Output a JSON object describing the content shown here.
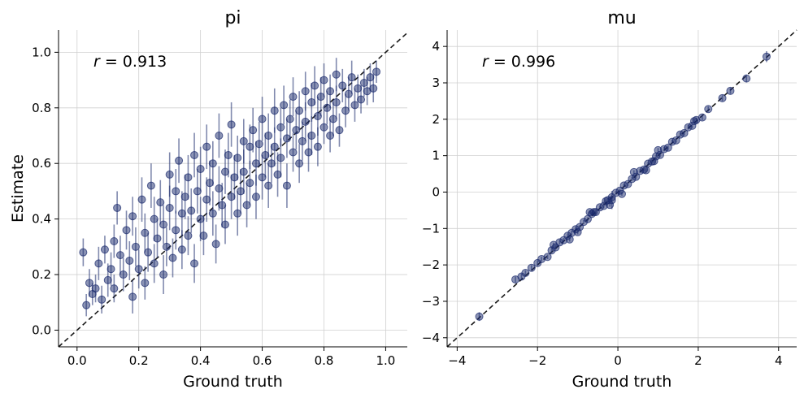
{
  "chart_data": [
    {
      "type": "scatter",
      "title": "pi",
      "xlabel": "Ground truth",
      "ylabel": "Estimate",
      "xlim": [
        -0.06,
        1.07
      ],
      "ylim": [
        -0.06,
        1.08
      ],
      "xticks": [
        "0.0",
        "0.2",
        "0.4",
        "0.6",
        "0.8",
        "1.0"
      ],
      "yticks": [
        "0.0",
        "0.2",
        "0.4",
        "0.6",
        "0.8",
        "1.0"
      ],
      "annotation": {
        "var": "r",
        "text": " = 0.913"
      },
      "identity_line": true,
      "grid": true,
      "color": "#1a2a6c",
      "line_color": "#1a1a1a",
      "points": [
        [
          0.02,
          0.28,
          0.05
        ],
        [
          0.03,
          0.09,
          0.04
        ],
        [
          0.04,
          0.17,
          0.05
        ],
        [
          0.05,
          0.13,
          0.04
        ],
        [
          0.06,
          0.15,
          0.05
        ],
        [
          0.07,
          0.24,
          0.06
        ],
        [
          0.08,
          0.11,
          0.05
        ],
        [
          0.09,
          0.29,
          0.05
        ],
        [
          0.1,
          0.18,
          0.06
        ],
        [
          0.11,
          0.22,
          0.06
        ],
        [
          0.12,
          0.32,
          0.06
        ],
        [
          0.12,
          0.15,
          0.05
        ],
        [
          0.13,
          0.44,
          0.06
        ],
        [
          0.14,
          0.27,
          0.07
        ],
        [
          0.15,
          0.2,
          0.06
        ],
        [
          0.16,
          0.36,
          0.07
        ],
        [
          0.17,
          0.25,
          0.07
        ],
        [
          0.18,
          0.12,
          0.06
        ],
        [
          0.18,
          0.41,
          0.07
        ],
        [
          0.19,
          0.3,
          0.07
        ],
        [
          0.2,
          0.22,
          0.07
        ],
        [
          0.21,
          0.47,
          0.08
        ],
        [
          0.22,
          0.35,
          0.07
        ],
        [
          0.22,
          0.17,
          0.06
        ],
        [
          0.23,
          0.28,
          0.07
        ],
        [
          0.24,
          0.52,
          0.08
        ],
        [
          0.25,
          0.4,
          0.08
        ],
        [
          0.25,
          0.24,
          0.07
        ],
        [
          0.26,
          0.33,
          0.07
        ],
        [
          0.27,
          0.46,
          0.08
        ],
        [
          0.28,
          0.2,
          0.07
        ],
        [
          0.28,
          0.38,
          0.07
        ],
        [
          0.29,
          0.3,
          0.07
        ],
        [
          0.3,
          0.56,
          0.08
        ],
        [
          0.3,
          0.44,
          0.08
        ],
        [
          0.31,
          0.26,
          0.07
        ],
        [
          0.32,
          0.5,
          0.08
        ],
        [
          0.32,
          0.36,
          0.07
        ],
        [
          0.33,
          0.61,
          0.08
        ],
        [
          0.34,
          0.42,
          0.08
        ],
        [
          0.34,
          0.29,
          0.07
        ],
        [
          0.35,
          0.48,
          0.08
        ],
        [
          0.36,
          0.55,
          0.08
        ],
        [
          0.36,
          0.34,
          0.07
        ],
        [
          0.37,
          0.43,
          0.08
        ],
        [
          0.38,
          0.63,
          0.08
        ],
        [
          0.38,
          0.24,
          0.07
        ],
        [
          0.39,
          0.5,
          0.08
        ],
        [
          0.4,
          0.4,
          0.08
        ],
        [
          0.4,
          0.58,
          0.08
        ],
        [
          0.41,
          0.34,
          0.07
        ],
        [
          0.42,
          0.47,
          0.08
        ],
        [
          0.42,
          0.66,
          0.08
        ],
        [
          0.43,
          0.53,
          0.08
        ],
        [
          0.44,
          0.42,
          0.08
        ],
        [
          0.44,
          0.6,
          0.08
        ],
        [
          0.45,
          0.31,
          0.07
        ],
        [
          0.46,
          0.51,
          0.08
        ],
        [
          0.46,
          0.7,
          0.08
        ],
        [
          0.47,
          0.45,
          0.08
        ],
        [
          0.48,
          0.57,
          0.08
        ],
        [
          0.48,
          0.38,
          0.07
        ],
        [
          0.49,
          0.63,
          0.08
        ],
        [
          0.5,
          0.48,
          0.08
        ],
        [
          0.5,
          0.74,
          0.08
        ],
        [
          0.51,
          0.55,
          0.08
        ],
        [
          0.52,
          0.42,
          0.08
        ],
        [
          0.52,
          0.62,
          0.08
        ],
        [
          0.53,
          0.5,
          0.08
        ],
        [
          0.54,
          0.68,
          0.08
        ],
        [
          0.54,
          0.57,
          0.08
        ],
        [
          0.55,
          0.45,
          0.08
        ],
        [
          0.56,
          0.66,
          0.08
        ],
        [
          0.56,
          0.53,
          0.08
        ],
        [
          0.57,
          0.72,
          0.08
        ],
        [
          0.58,
          0.6,
          0.08
        ],
        [
          0.58,
          0.48,
          0.08
        ],
        [
          0.59,
          0.67,
          0.08
        ],
        [
          0.6,
          0.55,
          0.08
        ],
        [
          0.6,
          0.76,
          0.08
        ],
        [
          0.61,
          0.63,
          0.08
        ],
        [
          0.62,
          0.52,
          0.08
        ],
        [
          0.62,
          0.7,
          0.08
        ],
        [
          0.63,
          0.6,
          0.07
        ],
        [
          0.64,
          0.79,
          0.08
        ],
        [
          0.64,
          0.66,
          0.07
        ],
        [
          0.65,
          0.56,
          0.08
        ],
        [
          0.66,
          0.73,
          0.07
        ],
        [
          0.66,
          0.62,
          0.07
        ],
        [
          0.67,
          0.81,
          0.07
        ],
        [
          0.68,
          0.69,
          0.07
        ],
        [
          0.68,
          0.52,
          0.08
        ],
        [
          0.69,
          0.76,
          0.07
        ],
        [
          0.7,
          0.64,
          0.07
        ],
        [
          0.7,
          0.84,
          0.07
        ],
        [
          0.71,
          0.72,
          0.07
        ],
        [
          0.72,
          0.6,
          0.07
        ],
        [
          0.72,
          0.79,
          0.07
        ],
        [
          0.73,
          0.68,
          0.07
        ],
        [
          0.74,
          0.86,
          0.07
        ],
        [
          0.74,
          0.75,
          0.07
        ],
        [
          0.75,
          0.64,
          0.07
        ],
        [
          0.76,
          0.82,
          0.07
        ],
        [
          0.76,
          0.7,
          0.07
        ],
        [
          0.77,
          0.88,
          0.07
        ],
        [
          0.78,
          0.77,
          0.07
        ],
        [
          0.78,
          0.66,
          0.07
        ],
        [
          0.79,
          0.84,
          0.07
        ],
        [
          0.8,
          0.73,
          0.06
        ],
        [
          0.8,
          0.9,
          0.06
        ],
        [
          0.81,
          0.8,
          0.06
        ],
        [
          0.82,
          0.7,
          0.06
        ],
        [
          0.82,
          0.86,
          0.06
        ],
        [
          0.83,
          0.76,
          0.06
        ],
        [
          0.84,
          0.92,
          0.06
        ],
        [
          0.84,
          0.82,
          0.06
        ],
        [
          0.85,
          0.72,
          0.06
        ],
        [
          0.86,
          0.88,
          0.06
        ],
        [
          0.87,
          0.79,
          0.06
        ],
        [
          0.88,
          0.85,
          0.06
        ],
        [
          0.89,
          0.91,
          0.06
        ],
        [
          0.9,
          0.81,
          0.06
        ],
        [
          0.91,
          0.87,
          0.05
        ],
        [
          0.92,
          0.83,
          0.05
        ],
        [
          0.93,
          0.89,
          0.05
        ],
        [
          0.94,
          0.86,
          0.05
        ],
        [
          0.95,
          0.91,
          0.05
        ],
        [
          0.96,
          0.87,
          0.05
        ],
        [
          0.97,
          0.93,
          0.04
        ]
      ]
    },
    {
      "type": "scatter",
      "title": "mu",
      "xlabel": "Ground truth",
      "ylabel": "",
      "xlim": [
        -4.25,
        4.45
      ],
      "ylim": [
        -4.25,
        4.45
      ],
      "xticks": [
        "−4",
        "−2",
        "0",
        "2",
        "4"
      ],
      "yticks": [
        "−4",
        "−3",
        "−2",
        "−1",
        "0",
        "1",
        "2",
        "3",
        "4"
      ],
      "annotation": {
        "var": "r",
        "text": " = 0.996"
      },
      "identity_line": true,
      "grid": true,
      "color": "#1a2a6c",
      "line_color": "#1a1a1a",
      "points": [
        [
          -3.45,
          -3.42,
          0.12
        ],
        [
          -2.55,
          -2.4,
          0.08
        ],
        [
          -2.4,
          -2.32,
          0.08
        ],
        [
          -2.3,
          -2.22,
          0.07
        ],
        [
          -2.15,
          -2.08,
          0.07
        ],
        [
          -2.0,
          -1.95,
          0.07
        ],
        [
          -1.9,
          -1.84,
          0.06
        ],
        [
          -1.75,
          -1.78,
          0.06
        ],
        [
          -1.65,
          -1.6,
          0.06
        ],
        [
          -1.55,
          -1.52,
          0.06
        ],
        [
          -1.45,
          -1.38,
          0.06
        ],
        [
          -1.35,
          -1.32,
          0.06
        ],
        [
          -1.25,
          -1.2,
          0.06
        ],
        [
          -1.15,
          -1.12,
          0.06
        ],
        [
          -1.05,
          -1.02,
          0.06
        ],
        [
          -0.95,
          -0.96,
          0.05
        ],
        [
          -0.85,
          -0.82,
          0.05
        ],
        [
          -0.75,
          -0.74,
          0.05
        ],
        [
          -0.65,
          -0.6,
          0.05
        ],
        [
          -0.55,
          -0.55,
          0.05
        ],
        [
          -0.45,
          -0.42,
          0.05
        ],
        [
          -0.35,
          -0.38,
          0.05
        ],
        [
          -0.25,
          -0.22,
          0.05
        ],
        [
          -0.15,
          -0.14,
          0.05
        ],
        [
          -0.05,
          -0.02,
          0.05
        ],
        [
          0.05,
          0.04,
          0.05
        ],
        [
          0.15,
          0.18,
          0.05
        ],
        [
          0.25,
          0.22,
          0.05
        ],
        [
          0.35,
          0.36,
          0.05
        ],
        [
          0.45,
          0.42,
          0.05
        ],
        [
          0.55,
          0.58,
          0.05
        ],
        [
          0.65,
          0.62,
          0.05
        ],
        [
          0.75,
          0.78,
          0.05
        ],
        [
          0.85,
          0.84,
          0.05
        ],
        [
          0.95,
          0.98,
          0.05
        ],
        [
          1.05,
          1.02,
          0.06
        ],
        [
          1.15,
          1.18,
          0.06
        ],
        [
          1.25,
          1.22,
          0.06
        ],
        [
          1.35,
          1.38,
          0.06
        ],
        [
          1.45,
          1.42,
          0.06
        ],
        [
          1.55,
          1.58,
          0.06
        ],
        [
          1.65,
          1.62,
          0.06
        ],
        [
          1.75,
          1.78,
          0.06
        ],
        [
          1.85,
          1.82,
          0.06
        ],
        [
          1.95,
          1.98,
          0.07
        ],
        [
          2.1,
          2.05,
          0.07
        ],
        [
          2.25,
          2.28,
          0.07
        ],
        [
          2.6,
          2.58,
          0.08
        ],
        [
          2.8,
          2.78,
          0.08
        ],
        [
          3.2,
          3.12,
          0.1
        ],
        [
          3.7,
          3.72,
          0.15
        ],
        [
          -1.2,
          -1.3,
          0.06
        ],
        [
          0.1,
          -0.05,
          0.05
        ],
        [
          0.4,
          0.55,
          0.05
        ],
        [
          -0.2,
          -0.35,
          0.05
        ],
        [
          1.0,
          1.15,
          0.06
        ],
        [
          -0.7,
          -0.55,
          0.05
        ],
        [
          1.9,
          1.95,
          0.06
        ],
        [
          -1.6,
          -1.45,
          0.06
        ],
        [
          0.7,
          0.6,
          0.05
        ],
        [
          -0.15,
          -0.22,
          0.25
        ],
        [
          -0.6,
          -0.55,
          0.06
        ],
        [
          -1.0,
          -1.1,
          0.06
        ],
        [
          0.9,
          0.85,
          0.05
        ],
        [
          -0.3,
          -0.25,
          0.05
        ]
      ]
    }
  ]
}
